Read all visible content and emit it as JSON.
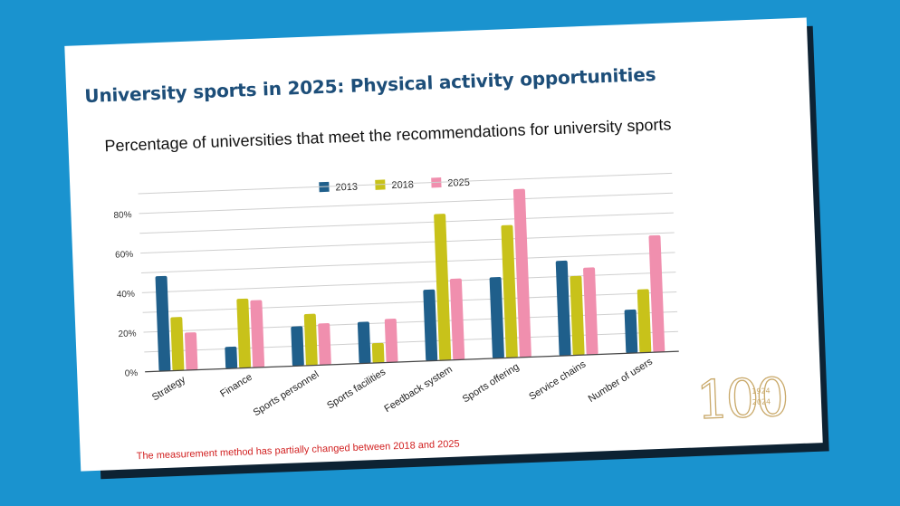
{
  "slide": {
    "title": "University sports in 2025: Physical activity opportunities",
    "footnote": "The measurement method has partially changed between 2018 and 2025"
  },
  "logo": {
    "numeral": "100",
    "year_start": "1924",
    "year_end": "2024",
    "color": "#c9a96a"
  },
  "chart_data": {
    "type": "bar",
    "title": "Percentage of universities that meet the recommendations for university sports",
    "xlabel": "",
    "ylabel": "",
    "categories": [
      "Strategy",
      "Finance",
      "Sports personnel",
      "Sports facilities",
      "Feedback system",
      "Sports offering",
      "Service chains",
      "Number of users"
    ],
    "series": [
      {
        "name": "2013",
        "color": "#1f5f8b",
        "values": [
          48,
          11,
          20,
          21,
          36,
          41,
          48,
          22
        ]
      },
      {
        "name": "2018",
        "color": "#c8c21a",
        "values": [
          27,
          35,
          26,
          10,
          74,
          67,
          40,
          32
        ]
      },
      {
        "name": "2025",
        "color": "#f08fae",
        "values": [
          19,
          34,
          21,
          22,
          41,
          85,
          44,
          59
        ]
      }
    ],
    "ylim": [
      0,
      80
    ],
    "yticks": [
      0,
      20,
      40,
      60,
      80
    ],
    "ytick_labels": [
      "0%",
      "20%",
      "40%",
      "60%",
      "80%"
    ],
    "grid": true,
    "legend": "top"
  }
}
